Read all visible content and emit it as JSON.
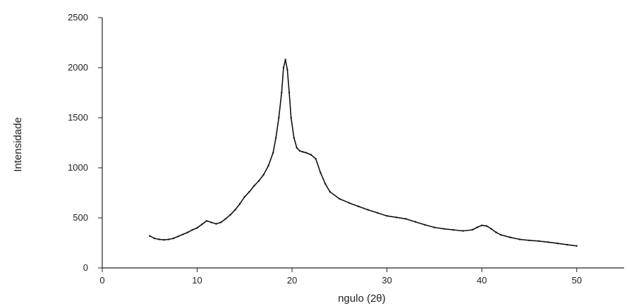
{
  "chart_data": {
    "type": "line",
    "xlabel": "ngulo (2θ)",
    "ylabel": "Intensidade",
    "xlim": [
      0,
      55
    ],
    "ylim": [
      0,
      2500
    ],
    "x_ticks": [
      0,
      10,
      20,
      30,
      40,
      50
    ],
    "y_ticks": [
      0,
      500,
      1000,
      1500,
      2000,
      2500
    ],
    "grid": false,
    "line_color": "#111111",
    "series": [
      {
        "x": [
          5,
          5.5,
          6,
          6.5,
          7,
          7.5,
          8,
          8.5,
          9,
          9.5,
          10,
          10.5,
          11,
          11.5,
          12,
          12.5,
          13,
          13.5,
          14,
          14.5,
          15,
          15.5,
          16,
          16.5,
          17,
          17.5,
          18,
          18.3,
          18.6,
          18.9,
          19.1,
          19.3,
          19.5,
          19.7,
          19.9,
          20.2,
          20.5,
          20.8,
          21.1,
          21.5,
          22,
          22.5,
          23,
          23.5,
          24,
          25,
          26,
          27,
          28,
          29,
          30,
          31,
          32,
          33,
          34,
          35,
          36,
          37,
          38,
          39,
          39.5,
          40,
          40.5,
          41,
          41.5,
          42,
          43,
          44,
          45,
          46,
          47,
          48,
          49,
          50
        ],
        "y": [
          320,
          295,
          285,
          280,
          285,
          295,
          315,
          335,
          355,
          380,
          400,
          435,
          470,
          455,
          440,
          455,
          490,
          530,
          580,
          640,
          710,
          760,
          820,
          870,
          930,
          1020,
          1150,
          1300,
          1500,
          1750,
          2000,
          2080,
          1980,
          1750,
          1500,
          1300,
          1200,
          1170,
          1160,
          1150,
          1130,
          1090,
          950,
          840,
          760,
          690,
          650,
          615,
          580,
          550,
          520,
          505,
          490,
          460,
          430,
          405,
          390,
          380,
          370,
          380,
          405,
          425,
          420,
          390,
          355,
          330,
          305,
          285,
          275,
          268,
          258,
          245,
          232,
          220
        ]
      }
    ]
  }
}
